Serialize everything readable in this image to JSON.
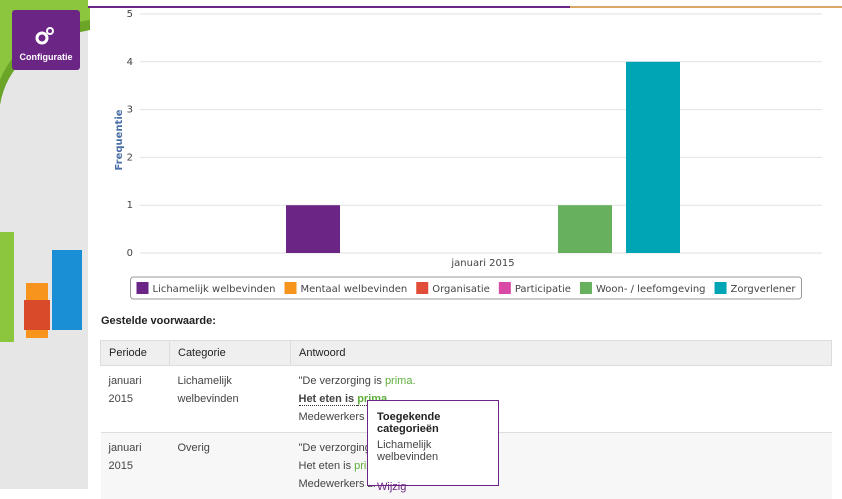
{
  "sidebar": {
    "button": "Configuratie"
  },
  "chart_data": {
    "type": "bar",
    "y_label": "Frequentie",
    "categories": [
      "januari 2015"
    ],
    "series": [
      {
        "name": "Lichamelijk welbevinden",
        "color": "#6b2585",
        "values": [
          1
        ]
      },
      {
        "name": "Mentaal welbevinden",
        "color": "#f7941d",
        "values": [
          0
        ]
      },
      {
        "name": "Organisatie",
        "color": "#e04e39",
        "values": [
          0
        ]
      },
      {
        "name": "Participatie",
        "color": "#d94aa6",
        "values": [
          0
        ]
      },
      {
        "name": "Woon- / leefomgeving",
        "color": "#66b05e",
        "values": [
          1
        ]
      },
      {
        "name": "Zorgverlener",
        "color": "#00a5b5",
        "values": [
          4
        ]
      }
    ],
    "ylim": [
      0,
      5
    ],
    "yticks": [
      0,
      1,
      2,
      3,
      4,
      5
    ],
    "grid": true,
    "legend": "bottom"
  },
  "section_title": "Gestelde voorwaarde:",
  "table": {
    "headers": [
      "Periode",
      "Categorie",
      "Antwoord"
    ],
    "rows": [
      {
        "period": "januari 2015",
        "category": "Lichamelijk welbevinden",
        "answer": [
          [
            {
              "text": "\"De verzorging is "
            },
            {
              "text": "prima.",
              "color": "#5fae3a"
            }
          ],
          [
            {
              "text": "Het eten is ",
              "bold": true
            },
            {
              "text": "prima",
              "color": "#5fae3a",
              "bold": true
            }
          ],
          [
            {
              "text": "Medewerkers zi"
            }
          ]
        ]
      },
      {
        "period": "januari 2015",
        "category": "Overig",
        "answer": [
          [
            {
              "text": "\"De verzorging i"
            }
          ],
          [
            {
              "text": "Het eten is "
            },
            {
              "text": "prim",
              "color": "#5fae3a"
            }
          ],
          [
            {
              "text": "Medewerkers zi"
            }
          ]
        ]
      }
    ]
  },
  "tooltip": {
    "title": "Toegekende categorieën",
    "category": "Lichamelijk welbevinden",
    "action": "Wijzig"
  }
}
